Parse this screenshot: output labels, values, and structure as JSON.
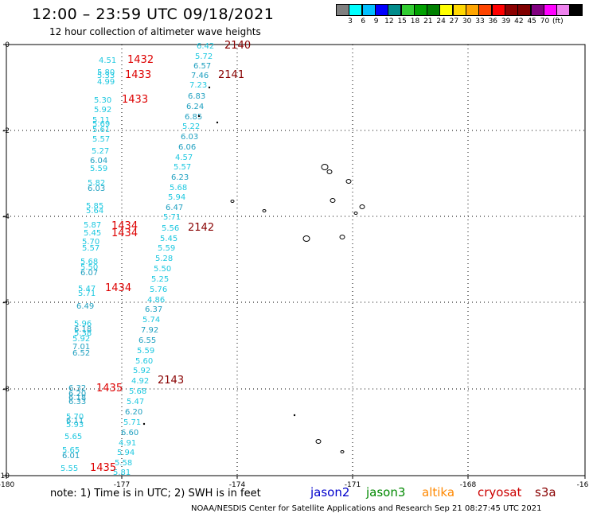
{
  "header": {
    "title": "12:00 – 23:59 UTC 09/18/2021",
    "subtitle": "12 hour collection of altimeter wave heights"
  },
  "colorbar": {
    "colors": [
      "#808080",
      "#00ffff",
      "#00bfff",
      "#0000ff",
      "#008b8b",
      "#32cd32",
      "#00a000",
      "#008000",
      "#ffff00",
      "#ffd700",
      "#ffa500",
      "#ff4500",
      "#ff0000",
      "#8b0000",
      "#800000",
      "#800080",
      "#ff00ff",
      "#ee82ee",
      "#000000"
    ],
    "ticks": [
      "3",
      "6",
      "9",
      "12",
      "15",
      "18",
      "21",
      "24",
      "27",
      "30",
      "33",
      "36",
      "39",
      "42",
      "45",
      "70",
      "(ft)"
    ]
  },
  "axes": {
    "x_ticks": [
      "-180",
      "-177",
      "-174",
      "-171",
      "-168",
      "-16"
    ],
    "y_ticks": [
      "0",
      "-2",
      "-4",
      "-6",
      "-8",
      "-10"
    ]
  },
  "legend": {
    "note": "note:  1) Time is in UTC;  2) SWH is in feet",
    "jason2": "jason2",
    "jason3": "jason3",
    "altika": "altika",
    "cryosat": "cryosat",
    "s3a": "s3a",
    "colors": {
      "jason2": "#0000cc",
      "jason3": "#008800",
      "altika": "#ff8800",
      "cryosat": "#cc0000",
      "s3a": "#880000"
    }
  },
  "credit": "NOAA/NESDIS Center for Satellite Applications and Research     Sep 21 08:27:45 UTC 2021",
  "colors": {
    "cyan": "#1ec8e0",
    "teal": "#20a0c0",
    "red": "#dd0000",
    "darkred": "#880000"
  },
  "track_left": {
    "values": [
      {
        "v": "4.51",
        "c": "cyan"
      },
      {
        "v": "5.80",
        "c": "cyan"
      },
      {
        "v": "5.33",
        "c": "cyan"
      },
      {
        "v": "4.99",
        "c": "cyan"
      },
      {
        "v": "5.30",
        "c": "cyan"
      },
      {
        "v": "5.92",
        "c": "cyan"
      },
      {
        "v": "5.11",
        "c": "cyan"
      },
      {
        "v": "5.69",
        "c": "cyan"
      },
      {
        "v": "5.61",
        "c": "cyan"
      },
      {
        "v": "5.57",
        "c": "cyan"
      },
      {
        "v": "5.27",
        "c": "cyan"
      },
      {
        "v": "6.04",
        "c": "teal"
      },
      {
        "v": "5.59",
        "c": "cyan"
      },
      {
        "v": "5.82",
        "c": "cyan"
      },
      {
        "v": "6.03",
        "c": "teal"
      },
      {
        "v": "5.85",
        "c": "cyan"
      },
      {
        "v": "5.64",
        "c": "cyan"
      },
      {
        "v": "5.87",
        "c": "cyan"
      },
      {
        "v": "5.45",
        "c": "cyan"
      },
      {
        "v": "5.70",
        "c": "cyan"
      },
      {
        "v": "5.57",
        "c": "cyan"
      },
      {
        "v": "5.68",
        "c": "cyan"
      },
      {
        "v": "5.50",
        "c": "cyan"
      },
      {
        "v": "6.07",
        "c": "teal"
      },
      {
        "v": "5.47",
        "c": "cyan"
      },
      {
        "v": "5.71",
        "c": "cyan"
      },
      {
        "v": "6.49",
        "c": "teal"
      },
      {
        "v": "5.96",
        "c": "cyan"
      },
      {
        "v": "6.18",
        "c": "teal"
      },
      {
        "v": "5.38",
        "c": "cyan"
      },
      {
        "v": "5.92",
        "c": "cyan"
      },
      {
        "v": "7.01",
        "c": "teal"
      },
      {
        "v": "6.52",
        "c": "teal"
      },
      {
        "v": "6.32",
        "c": "teal"
      },
      {
        "v": "6.20",
        "c": "teal"
      },
      {
        "v": "6.18",
        "c": "teal"
      },
      {
        "v": "6.33",
        "c": "teal"
      },
      {
        "v": "5.70",
        "c": "cyan"
      },
      {
        "v": "6.11",
        "c": "teal"
      },
      {
        "v": "5.93",
        "c": "cyan"
      },
      {
        "v": "5.65",
        "c": "cyan"
      },
      {
        "v": "5.65",
        "c": "cyan"
      },
      {
        "v": "6.01",
        "c": "teal"
      },
      {
        "v": "5.55",
        "c": "cyan"
      }
    ],
    "times": [
      "1432",
      "1433",
      "1433",
      "1434",
      "1434",
      "1434",
      "1435",
      "1435"
    ]
  },
  "track_mid": {
    "values": [
      {
        "v": "6.42",
        "c": "cyan"
      },
      {
        "v": "5.72",
        "c": "cyan"
      },
      {
        "v": "6.57",
        "c": "teal"
      },
      {
        "v": "7.46",
        "c": "teal"
      },
      {
        "v": "7.23",
        "c": "cyan"
      },
      {
        "v": "6.83",
        "c": "teal"
      },
      {
        "v": "6.24",
        "c": "teal"
      },
      {
        "v": "6.85",
        "c": "teal"
      },
      {
        "v": "5.22",
        "c": "cyan"
      },
      {
        "v": "6.03",
        "c": "teal"
      },
      {
        "v": "6.06",
        "c": "teal"
      },
      {
        "v": "4.57",
        "c": "cyan"
      },
      {
        "v": "5.57",
        "c": "cyan"
      },
      {
        "v": "6.23",
        "c": "teal"
      },
      {
        "v": "5.68",
        "c": "cyan"
      },
      {
        "v": "5.94",
        "c": "cyan"
      },
      {
        "v": "6.47",
        "c": "teal"
      },
      {
        "v": "5.71",
        "c": "cyan"
      },
      {
        "v": "5.56",
        "c": "cyan"
      },
      {
        "v": "5.45",
        "c": "cyan"
      },
      {
        "v": "5.59",
        "c": "cyan"
      },
      {
        "v": "5.28",
        "c": "cyan"
      },
      {
        "v": "5.50",
        "c": "cyan"
      },
      {
        "v": "5.25",
        "c": "cyan"
      },
      {
        "v": "5.76",
        "c": "cyan"
      },
      {
        "v": "4.86",
        "c": "cyan"
      },
      {
        "v": "6.37",
        "c": "teal"
      },
      {
        "v": "5.74",
        "c": "cyan"
      },
      {
        "v": "7.92",
        "c": "teal"
      },
      {
        "v": "6.55",
        "c": "teal"
      },
      {
        "v": "5.59",
        "c": "cyan"
      },
      {
        "v": "5.60",
        "c": "cyan"
      },
      {
        "v": "5.92",
        "c": "cyan"
      },
      {
        "v": "4.92",
        "c": "cyan"
      },
      {
        "v": "5.68",
        "c": "cyan"
      },
      {
        "v": "5.47",
        "c": "cyan"
      },
      {
        "v": "6.20",
        "c": "teal"
      },
      {
        "v": "5.71",
        "c": "cyan"
      },
      {
        "v": "6.60",
        "c": "teal"
      },
      {
        "v": "4.91",
        "c": "cyan"
      },
      {
        "v": "5.94",
        "c": "cyan"
      },
      {
        "v": "5.58",
        "c": "cyan"
      },
      {
        "v": "5.81",
        "c": "cyan"
      }
    ],
    "times": [
      "2140",
      "2141",
      "2142",
      "2143"
    ]
  }
}
